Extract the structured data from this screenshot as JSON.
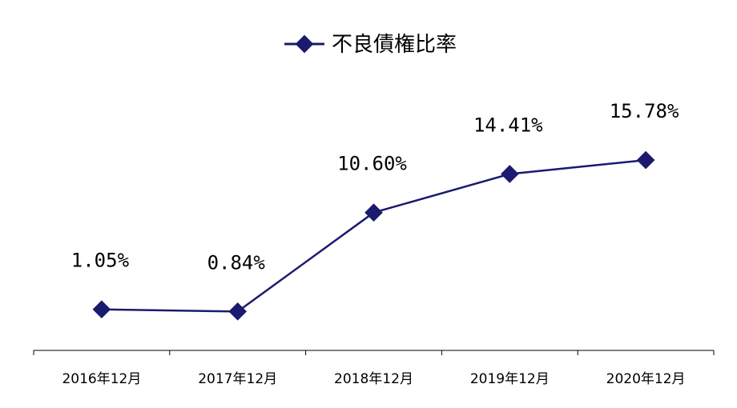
{
  "chart_data": {
    "type": "line",
    "categories": [
      "2016年12月",
      "2017年12月",
      "2018年12月",
      "2019年12月",
      "2020年12月"
    ],
    "series": [
      {
        "name": "不良債権比率",
        "values": [
          1.05,
          0.84,
          10.6,
          14.41,
          15.78
        ],
        "labels": [
          "1.05%",
          "0.84%",
          "10.60%",
          "14.41%",
          "15.78%"
        ],
        "color": "#1a1a6e"
      }
    ],
    "legend": "top-center",
    "grid": false,
    "ylim": [
      -3,
      30
    ]
  }
}
